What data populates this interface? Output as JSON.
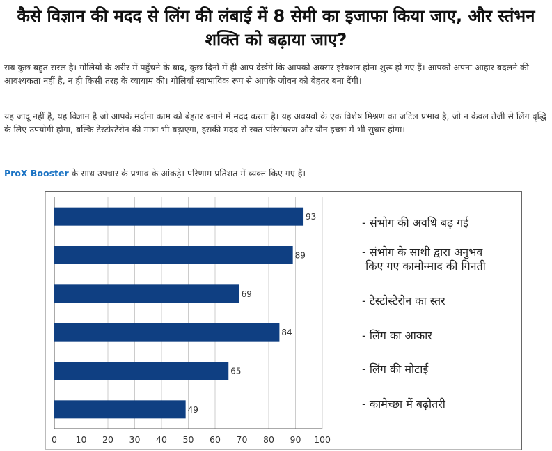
{
  "article": {
    "title": "कैसे विज्ञान की मदद से लिंग की लंबाई में 8 सेमी का इजाफा किया जाए, और स्तंभन शक्ति को बढ़ाया जाए?",
    "para1": "सब कुछ बहुत सरल है। गोलियों के शरीर में पहुँचने के बाद, कुछ दिनों में ही आप देखेंगे कि आपको अक्सर इरेक्शन होना शुरू हो गए हैं। आपको अपना आहार बदलने की आवश्यकता नहीं है, न ही किसी तरह के व्यायाम की। गोलियाँ स्वाभाविक रूप से आपके जीवन को बेहतर बना देंगी।",
    "para2": "यह जादू नहीं है, यह विज्ञान है जो आपके मर्दाना काम को बेहतर बनाने में मदद करता है। यह अवयवों के एक विशेष मिश्रण का जटिल प्रभाव है, जो न केवल तेजी से लिंग वृद्धि के लिए उपयोगी होगा, बल्कि टेस्टोस्टेरोन की मात्रा भी बढ़ाएगा, इसकी मदद से रक्त परिसंचरण और यौन इच्छा में भी सुधार होगा।",
    "brand": "ProX Booster",
    "para3_rest": " के साथ उपचार के प्रभाव के आंकड़े। परिणाम प्रतिशत में व्यक्त किए गए हैं।"
  },
  "colors": {
    "bar": "#0f3f82",
    "brand": "#1a73c4"
  },
  "chart_data": {
    "type": "bar",
    "orientation": "horizontal",
    "categories": [
      "- संभोग की अवधि बढ़ गई",
      "- संभोग के साथी द्वारा अनुभव किए गए कामोन्माद की गिनती",
      "- टेस्टोस्टेरोन का स्तर",
      "- लिंग का आकार",
      "- लिंग की मोटाई",
      "- कामेच्छा में बढ़ोतरी"
    ],
    "category_lines": [
      [
        "- संभोग की अवधि बढ़ गई"
      ],
      [
        "- संभोग के साथी द्वारा अनुभव",
        "  किए गए कामोन्माद की गिनती"
      ],
      [
        "- टेस्टोस्टेरोन का स्तर"
      ],
      [
        "- लिंग का आकार"
      ],
      [
        "- लिंग की मोटाई"
      ],
      [
        "- कामेच्छा में बढ़ोतरी"
      ]
    ],
    "values": [
      93,
      89,
      69,
      84,
      65,
      49
    ],
    "xlim": [
      0,
      100
    ],
    "xticks": [
      0,
      10,
      20,
      30,
      40,
      50,
      60,
      70,
      80,
      90,
      100
    ],
    "grid": true,
    "legend": "right"
  }
}
